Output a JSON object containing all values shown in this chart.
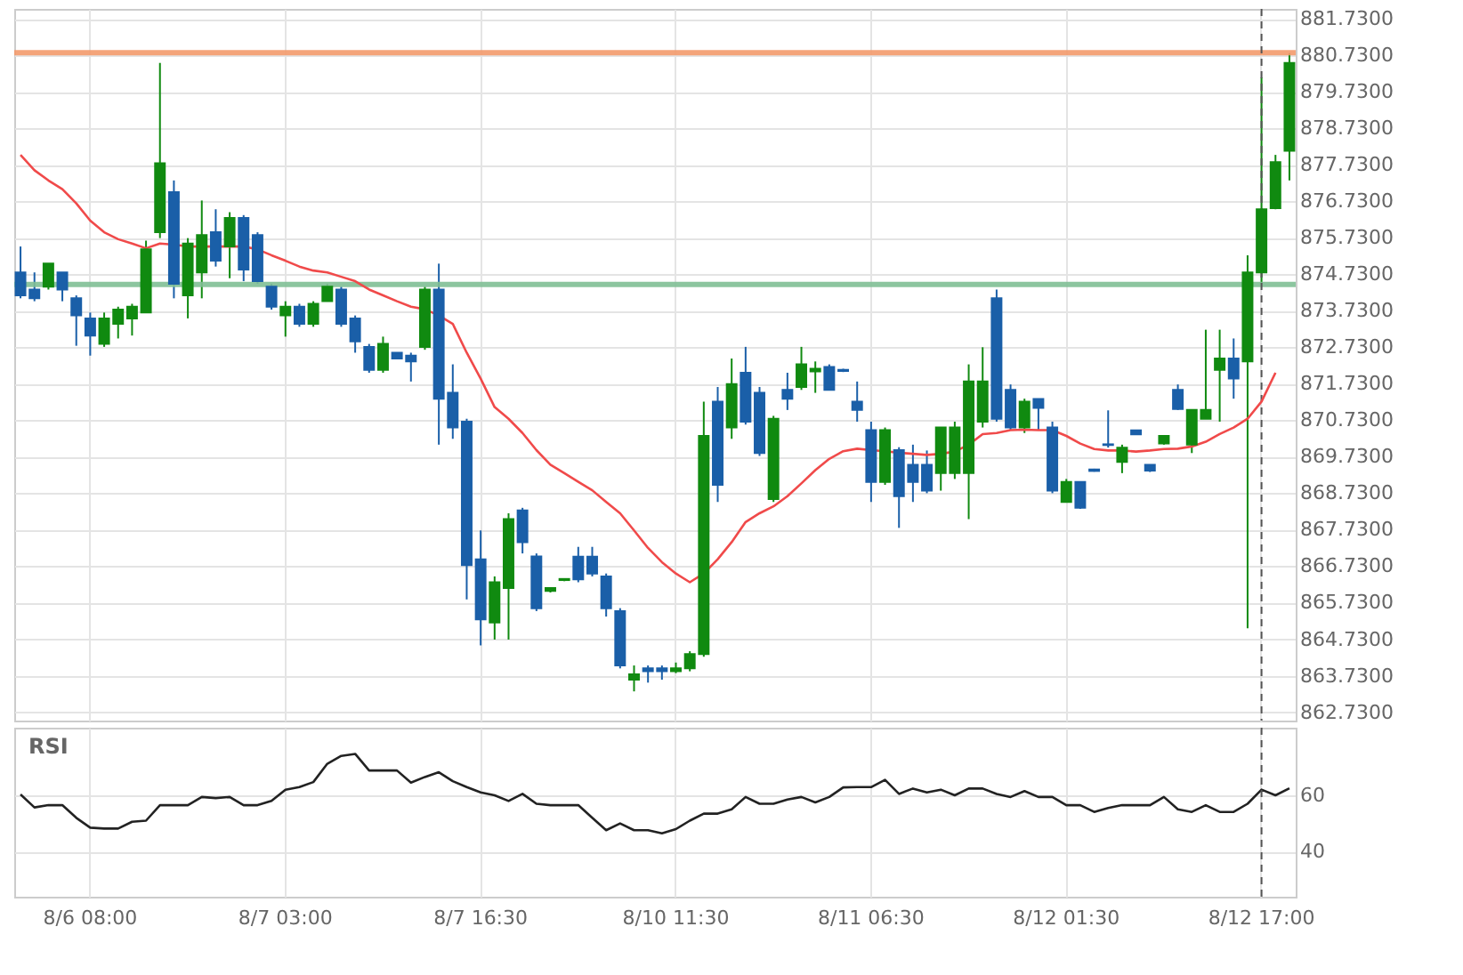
{
  "chart_data": [
    {
      "type": "candlestick",
      "tick_labels": "y",
      "grid": true,
      "categories": [
        null,
        null,
        null,
        null,
        null,
        "8/6 08:00",
        null,
        null,
        null,
        null,
        null,
        null,
        null,
        null,
        null,
        null,
        null,
        null,
        null,
        "8/7 03:00",
        null,
        null,
        null,
        null,
        null,
        null,
        null,
        null,
        null,
        null,
        null,
        null,
        null,
        "8/7 16:30",
        null,
        null,
        null,
        null,
        null,
        null,
        null,
        null,
        null,
        null,
        null,
        null,
        null,
        "8/10 11:30",
        null,
        null,
        null,
        null,
        null,
        null,
        null,
        null,
        null,
        null,
        null,
        null,
        null,
        "8/11 06:30",
        null,
        null,
        null,
        null,
        null,
        null,
        null,
        null,
        null,
        null,
        null,
        null,
        null,
        "8/12 01:30",
        null,
        null,
        null,
        null,
        null,
        null,
        null,
        null,
        null,
        null,
        null,
        null,
        null,
        "8/12 17:00",
        null,
        null
      ],
      "ohlc": [
        [
          874.78,
          875.49,
          874.07,
          874.15
        ],
        [
          874.31,
          874.78,
          873.99,
          874.07
        ],
        [
          874.39,
          875.02,
          874.31,
          875.02
        ],
        [
          874.78,
          874.78,
          873.99,
          874.31
        ],
        [
          874.07,
          874.15,
          872.77,
          873.6
        ],
        [
          873.52,
          873.68,
          872.5,
          873.05
        ],
        [
          872.82,
          873.68,
          872.74,
          873.52
        ],
        [
          873.37,
          873.84,
          872.97,
          873.76
        ],
        [
          873.52,
          873.92,
          873.05,
          873.84
        ],
        [
          873.68,
          875.65,
          873.68,
          875.41
        ],
        [
          875.88,
          880.52,
          875.72,
          877.77
        ],
        [
          876.98,
          877.3,
          874.07,
          874.47
        ],
        [
          874.15,
          875.72,
          873.52,
          875.57
        ],
        [
          874.78,
          876.75,
          874.07,
          875.8
        ],
        [
          875.88,
          876.51,
          874.94,
          875.1
        ],
        [
          875.49,
          876.43,
          874.62,
          876.27
        ],
        [
          876.27,
          876.35,
          874.54,
          874.86
        ],
        [
          875.8,
          875.88,
          874.47,
          874.54
        ],
        [
          874.39,
          874.47,
          873.76,
          873.84
        ],
        [
          873.6,
          873.99,
          873.02,
          873.84
        ],
        [
          873.84,
          873.92,
          873.29,
          873.37
        ],
        [
          873.37,
          873.99,
          873.29,
          873.92
        ],
        [
          873.99,
          874.47,
          873.99,
          874.39
        ],
        [
          874.31,
          874.39,
          873.29,
          873.37
        ],
        [
          873.52,
          873.6,
          872.58,
          872.89
        ],
        [
          872.74,
          872.82,
          872.03,
          872.11
        ],
        [
          872.11,
          873.02,
          872.03,
          872.82
        ],
        [
          872.58,
          872.58,
          872.42,
          872.42
        ],
        [
          872.5,
          872.58,
          871.79,
          872.34
        ],
        [
          872.74,
          874.39,
          872.66,
          874.31
        ],
        [
          874.31,
          875.02,
          870.06,
          871.32
        ],
        [
          871.48,
          872.26,
          870.22,
          870.53
        ],
        [
          870.69,
          870.77,
          865.82,
          866.76
        ],
        [
          866.92,
          867.71,
          864.56,
          865.27
        ],
        [
          865.19,
          866.45,
          864.72,
          866.29
        ],
        [
          866.13,
          868.18,
          864.72,
          868.02
        ],
        [
          868.26,
          868.33,
          867.08,
          867.39
        ],
        [
          867.0,
          867.08,
          865.5,
          865.58
        ],
        [
          866.05,
          866.13,
          866.01,
          866.13
        ],
        [
          866.35,
          866.4,
          866.32,
          866.38
        ],
        [
          866.99,
          867.26,
          866.29,
          866.37
        ],
        [
          866.99,
          867.26,
          866.45,
          866.53
        ],
        [
          866.45,
          866.53,
          865.35,
          865.58
        ],
        [
          865.5,
          865.58,
          863.93,
          864.01
        ],
        [
          863.62,
          864.01,
          863.3,
          863.77
        ],
        [
          863.93,
          864.01,
          863.54,
          863.85
        ],
        [
          863.93,
          864.01,
          863.62,
          863.85
        ],
        [
          863.85,
          864.09,
          863.8,
          863.93
        ],
        [
          863.93,
          864.4,
          863.85,
          864.32
        ],
        [
          864.32,
          871.24,
          864.25,
          870.3
        ],
        [
          871.24,
          871.64,
          868.49,
          868.96
        ],
        [
          870.53,
          872.42,
          870.22,
          871.72
        ],
        [
          872.03,
          872.74,
          870.61,
          870.69
        ],
        [
          871.48,
          871.64,
          869.75,
          869.83
        ],
        [
          868.57,
          870.85,
          868.49,
          870.77
        ],
        [
          871.56,
          872.03,
          871.01,
          871.32
        ],
        [
          871.64,
          872.74,
          871.56,
          872.26
        ],
        [
          872.07,
          872.34,
          871.48,
          872.14
        ],
        [
          872.19,
          872.26,
          871.56,
          871.56
        ],
        [
          872.11,
          872.14,
          872.05,
          872.08
        ],
        [
          871.24,
          871.79,
          870.69,
          871.01
        ],
        [
          870.46,
          870.69,
          868.49,
          869.04
        ],
        [
          869.04,
          870.53,
          868.96,
          870.46
        ],
        [
          869.91,
          869.99,
          867.78,
          868.65
        ],
        [
          869.51,
          870.06,
          868.49,
          869.04
        ],
        [
          869.51,
          869.9,
          868.73,
          868.8
        ],
        [
          869.28,
          870.53,
          868.8,
          870.53
        ],
        [
          869.28,
          870.69,
          869.12,
          870.53
        ],
        [
          869.28,
          872.26,
          868.02,
          871.79
        ],
        [
          870.69,
          872.73,
          870.53,
          871.79
        ],
        [
          874.07,
          874.31,
          870.69,
          870.77
        ],
        [
          871.56,
          871.71,
          870.45,
          870.53
        ],
        [
          870.53,
          871.32,
          870.38,
          871.24
        ],
        [
          871.31,
          871.32,
          870.45,
          871.07
        ],
        [
          870.53,
          870.69,
          868.73,
          868.8
        ],
        [
          868.49,
          869.12,
          868.49,
          869.04
        ],
        [
          869.04,
          869.04,
          868.3,
          868.33
        ],
        [
          869.38,
          869.4,
          869.32,
          869.34
        ],
        [
          870.07,
          871.0,
          869.98,
          870.05
        ],
        [
          869.59,
          870.06,
          869.28,
          869.98
        ],
        [
          870.45,
          870.45,
          870.34,
          870.34
        ],
        [
          869.51,
          869.51,
          869.31,
          869.35
        ],
        [
          870.09,
          870.3,
          870.06,
          870.3
        ],
        [
          871.56,
          871.71,
          871.01,
          871.04
        ],
        [
          870.06,
          871.01,
          869.83,
          871.01
        ],
        [
          870.77,
          873.21,
          870.77,
          871.01
        ],
        [
          872.11,
          873.21,
          870.69,
          872.42
        ],
        [
          872.42,
          872.97,
          871.32,
          871.87
        ],
        [
          872.34,
          875.25,
          865.03,
          874.78
        ],
        [
          874.78,
          880.12,
          874.47,
          876.51
        ],
        [
          876.54,
          878.0,
          876.51,
          877.8
        ],
        [
          878.11,
          880.79,
          877.3,
          880.52
        ]
      ],
      "colors": [
        "#1a5fa8",
        "#1a5fa8",
        "#108a10",
        "#1a5fa8",
        "#1a5fa8",
        "#1a5fa8",
        "#108a10",
        "#108a10",
        "#108a10",
        "#108a10",
        "#108a10",
        "#1a5fa8",
        "#108a10",
        "#108a10",
        "#1a5fa8",
        "#108a10",
        "#1a5fa8",
        "#1a5fa8",
        "#1a5fa8",
        "#108a10",
        "#1a5fa8",
        "#108a10",
        "#108a10",
        "#1a5fa8",
        "#1a5fa8",
        "#1a5fa8",
        "#108a10",
        "#1a5fa8",
        "#1a5fa8",
        "#108a10",
        "#1a5fa8",
        "#1a5fa8",
        "#1a5fa8",
        "#1a5fa8",
        "#108a10",
        "#108a10",
        "#1a5fa8",
        "#1a5fa8",
        "#108a10",
        "#108a10",
        "#1a5fa8",
        "#1a5fa8",
        "#1a5fa8",
        "#1a5fa8",
        "#108a10",
        "#1a5fa8",
        "#1a5fa8",
        "#108a10",
        "#108a10",
        "#108a10",
        "#1a5fa8",
        "#108a10",
        "#1a5fa8",
        "#1a5fa8",
        "#108a10",
        "#1a5fa8",
        "#108a10",
        "#108a10",
        "#1a5fa8",
        "#1a5fa8",
        "#1a5fa8",
        "#1a5fa8",
        "#108a10",
        "#1a5fa8",
        "#1a5fa8",
        "#1a5fa8",
        "#108a10",
        "#108a10",
        "#108a10",
        "#108a10",
        "#1a5fa8",
        "#1a5fa8",
        "#108a10",
        "#1a5fa8",
        "#1a5fa8",
        "#108a10",
        "#1a5fa8",
        "#1a5fa8",
        "#1a5fa8",
        "#108a10",
        "#1a5fa8",
        "#1a5fa8",
        "#108a10",
        "#1a5fa8",
        "#108a10",
        "#108a10",
        "#108a10",
        "#1a5fa8",
        "#108a10",
        "#108a10",
        "#108a10",
        "#108a10"
      ],
      "series": [
        {
          "type": "line",
          "color": "#f04a4a",
          "values": [
            878.0,
            877.58,
            877.3,
            877.06,
            876.67,
            876.2,
            875.88,
            875.69,
            875.57,
            875.44,
            875.57,
            875.54,
            875.49,
            875.49,
            875.49,
            875.49,
            875.49,
            875.41,
            875.25,
            875.1,
            874.94,
            874.83,
            874.78,
            874.66,
            874.54,
            874.31,
            874.15,
            873.99,
            873.84,
            873.77,
            873.6,
            873.37,
            872.58,
            871.87,
            871.09,
            870.77,
            870.38,
            869.91,
            869.51,
            869.28,
            869.04,
            868.81,
            868.49,
            868.18,
            867.71,
            867.23,
            866.84,
            866.53,
            866.29,
            866.53,
            866.92,
            867.39,
            867.94,
            868.18,
            868.37,
            868.65,
            869.0,
            869.36,
            869.67,
            869.88,
            869.95,
            869.91,
            869.88,
            869.84,
            869.81,
            869.78,
            869.81,
            869.87,
            870.06,
            870.35,
            870.38,
            870.46,
            870.47,
            870.46,
            870.46,
            870.3,
            870.09,
            869.94,
            869.9,
            869.9,
            869.87,
            869.9,
            869.94,
            869.95,
            870.01,
            870.14,
            870.35,
            870.53,
            870.77,
            871.24,
            872.03,
            null
          ]
        }
      ],
      "ylim": [
        862.5,
        882.0
      ],
      "yticks": [
        {
          "value": 862.73,
          "label": "862.7300"
        },
        {
          "value": 863.73,
          "label": "863.7300"
        },
        {
          "value": 864.73,
          "label": "864.7300"
        },
        {
          "value": 865.73,
          "label": "865.7300"
        },
        {
          "value": 866.73,
          "label": "866.7300"
        },
        {
          "value": 867.73,
          "label": "867.7300"
        },
        {
          "value": 868.73,
          "label": "868.7300"
        },
        {
          "value": 869.73,
          "label": "869.7300"
        },
        {
          "value": 870.73,
          "label": "870.7300"
        },
        {
          "value": 871.73,
          "label": "871.7300"
        },
        {
          "value": 872.73,
          "label": "872.7300"
        },
        {
          "value": 873.73,
          "label": "873.7300"
        },
        {
          "value": 874.73,
          "label": "874.7300"
        },
        {
          "value": 875.73,
          "label": "875.7300"
        },
        {
          "value": 876.73,
          "label": "876.7300"
        },
        {
          "value": 877.73,
          "label": "877.7300"
        },
        {
          "value": 878.73,
          "label": "878.7300"
        },
        {
          "value": 879.73,
          "label": "879.7300"
        },
        {
          "value": 880.73,
          "label": "880.7300"
        },
        {
          "value": 881.73,
          "label": "881.7300"
        }
      ],
      "ref_lines": [
        {
          "axis": "y",
          "value": 874.45,
          "color": "#7fbf95",
          "line_style": "solid"
        },
        {
          "axis": "y",
          "value": 880.8,
          "color": "#f39a6b",
          "line_style": "solid"
        },
        {
          "axis": "x",
          "value": "8/12 17:00",
          "color": "#555555",
          "line_style": "dashed"
        }
      ]
    },
    {
      "type": "line",
      "title": "RSI",
      "grid": true,
      "categories": [
        null,
        null,
        null,
        null,
        null,
        "8/6 08:00",
        null,
        null,
        null,
        null,
        null,
        null,
        null,
        null,
        null,
        null,
        null,
        null,
        null,
        "8/7 03:00",
        null,
        null,
        null,
        null,
        null,
        null,
        null,
        null,
        null,
        null,
        null,
        null,
        null,
        "8/7 16:30",
        null,
        null,
        null,
        null,
        null,
        null,
        null,
        null,
        null,
        null,
        null,
        null,
        null,
        "8/10 11:30",
        null,
        null,
        null,
        null,
        null,
        null,
        null,
        null,
        null,
        null,
        null,
        null,
        null,
        "8/11 06:30",
        null,
        null,
        null,
        null,
        null,
        null,
        null,
        null,
        null,
        null,
        null,
        null,
        null,
        "8/12 01:30",
        null,
        null,
        null,
        null,
        null,
        null,
        null,
        null,
        null,
        null,
        null,
        null,
        null,
        "8/12 17:00",
        null,
        null
      ],
      "series": [
        {
          "color": "#222222",
          "values": [
            60.3,
            55.7,
            56.5,
            56.5,
            52,
            48.5,
            48.2,
            48.2,
            50.6,
            51,
            56.5,
            56.5,
            56.5,
            59.4,
            59,
            59.4,
            56.5,
            56.5,
            58,
            62,
            62.9,
            64.7,
            71.2,
            74,
            74.7,
            68.8,
            68.8,
            68.8,
            64.5,
            66.5,
            68.2,
            65,
            62.9,
            61,
            60,
            58,
            60.5,
            57,
            56.5,
            56.5,
            56.5,
            52,
            47.6,
            50,
            47.6,
            47.6,
            46.5,
            48,
            51,
            53.5,
            53.5,
            55,
            59.4,
            57,
            57,
            58.5,
            59.4,
            57.5,
            59.4,
            62.8,
            62.9,
            62.9,
            65.5,
            60.5,
            62.4,
            61,
            62,
            60,
            62.4,
            62.4,
            60.5,
            59.4,
            61.5,
            59.4,
            59.4,
            56.5,
            56.5,
            54.1,
            55.5,
            56.5,
            56.5,
            56.5,
            59.4,
            55,
            54.1,
            56.5,
            54.1,
            54.1,
            57,
            62,
            60,
            62.5
          ]
        }
      ],
      "ylim": [
        24,
        84
      ],
      "yticks": [
        40,
        60
      ],
      "ref_lines": [
        {
          "axis": "x",
          "value": "8/12 17:00",
          "color": "#555555",
          "line_style": "dashed"
        }
      ]
    }
  ]
}
